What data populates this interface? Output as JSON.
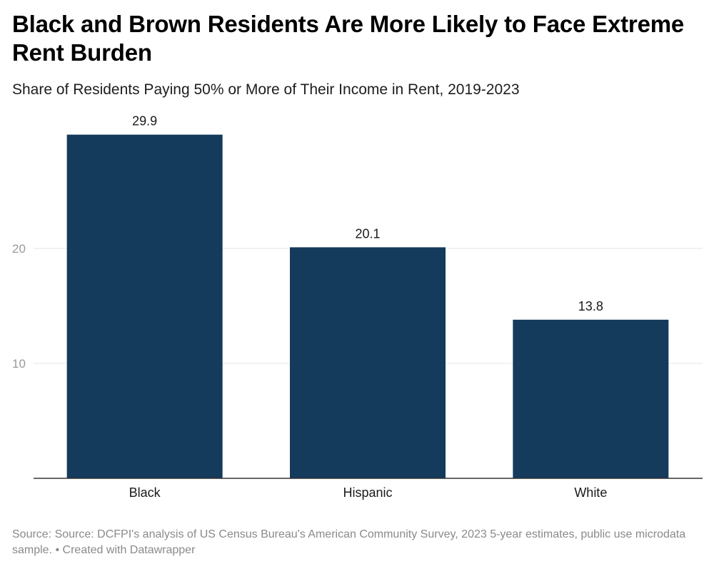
{
  "header": {
    "title": "Black and Brown Residents Are More Likely to Face Extreme Rent Burden",
    "subtitle": "Share of Residents Paying 50% or More of Their Income in Rent, 2019-2023"
  },
  "footer": {
    "source": "Source: Source: DCFPI's analysis of US Census Bureau's American Community Survey, 2023 5-year estimates, public use microdata sample.",
    "separator": " • ",
    "credit": "Created with Datawrapper"
  },
  "colors": {
    "bar": "#143a5c",
    "grid": "#e6e6e6",
    "axis": "#333333",
    "tick_label": "#999999"
  },
  "chart_data": {
    "type": "bar",
    "title": "Black and Brown Residents Are More Likely to Face Extreme Rent Burden",
    "subtitle": "Share of Residents Paying 50% or More of Their Income in Rent, 2019-2023",
    "categories": [
      "Black",
      "Hispanic",
      "White"
    ],
    "values": [
      29.9,
      20.1,
      13.8
    ],
    "value_labels": [
      "29.9",
      "20.1",
      "13.8"
    ],
    "xlabel": "",
    "ylabel": "",
    "ylim": [
      0,
      30
    ],
    "yticks": [
      10,
      20
    ],
    "ytick_labels": [
      "10",
      "20"
    ],
    "grid": true
  }
}
